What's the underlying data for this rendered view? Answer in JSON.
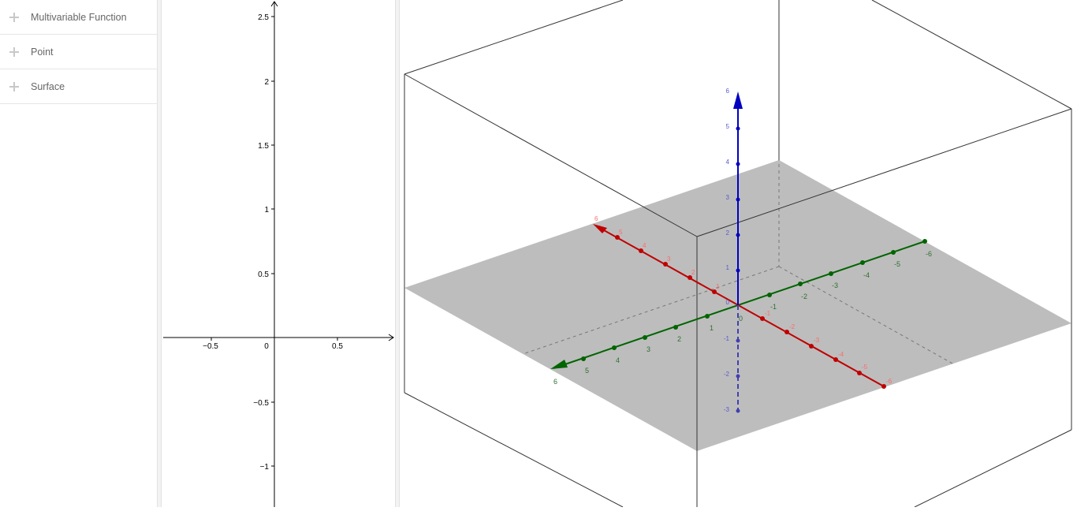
{
  "sidebar": {
    "items": [
      {
        "label": "Multivariable Function"
      },
      {
        "label": "Point"
      },
      {
        "label": "Surface"
      }
    ]
  },
  "graphics2d": {
    "x_ticks": [
      "−0.5",
      "0",
      "0.5"
    ],
    "y_ticks": [
      "2.5",
      "2",
      "1.5",
      "1",
      "0.5",
      "−0.5",
      "−1"
    ]
  },
  "graphics3d": {
    "colors": {
      "x_axis": "#c00000",
      "y_axis": "#006400",
      "z_axis": "#0000c0",
      "plane": "#bdbdbd"
    },
    "z_labels": [
      "6",
      "5",
      "4",
      "3",
      "2",
      "1",
      "0",
      "-1",
      "-2",
      "-3"
    ],
    "y_labels": [
      "6",
      "5",
      "4",
      "3",
      "2",
      "1",
      "0",
      "-1",
      "-2",
      "-3",
      "-4",
      "-5",
      "-6"
    ],
    "x_labels": [
      "6",
      "5",
      "4",
      "3",
      "2",
      "1",
      "-1",
      "-2",
      "-3",
      "-4",
      "-5",
      "-6"
    ]
  }
}
